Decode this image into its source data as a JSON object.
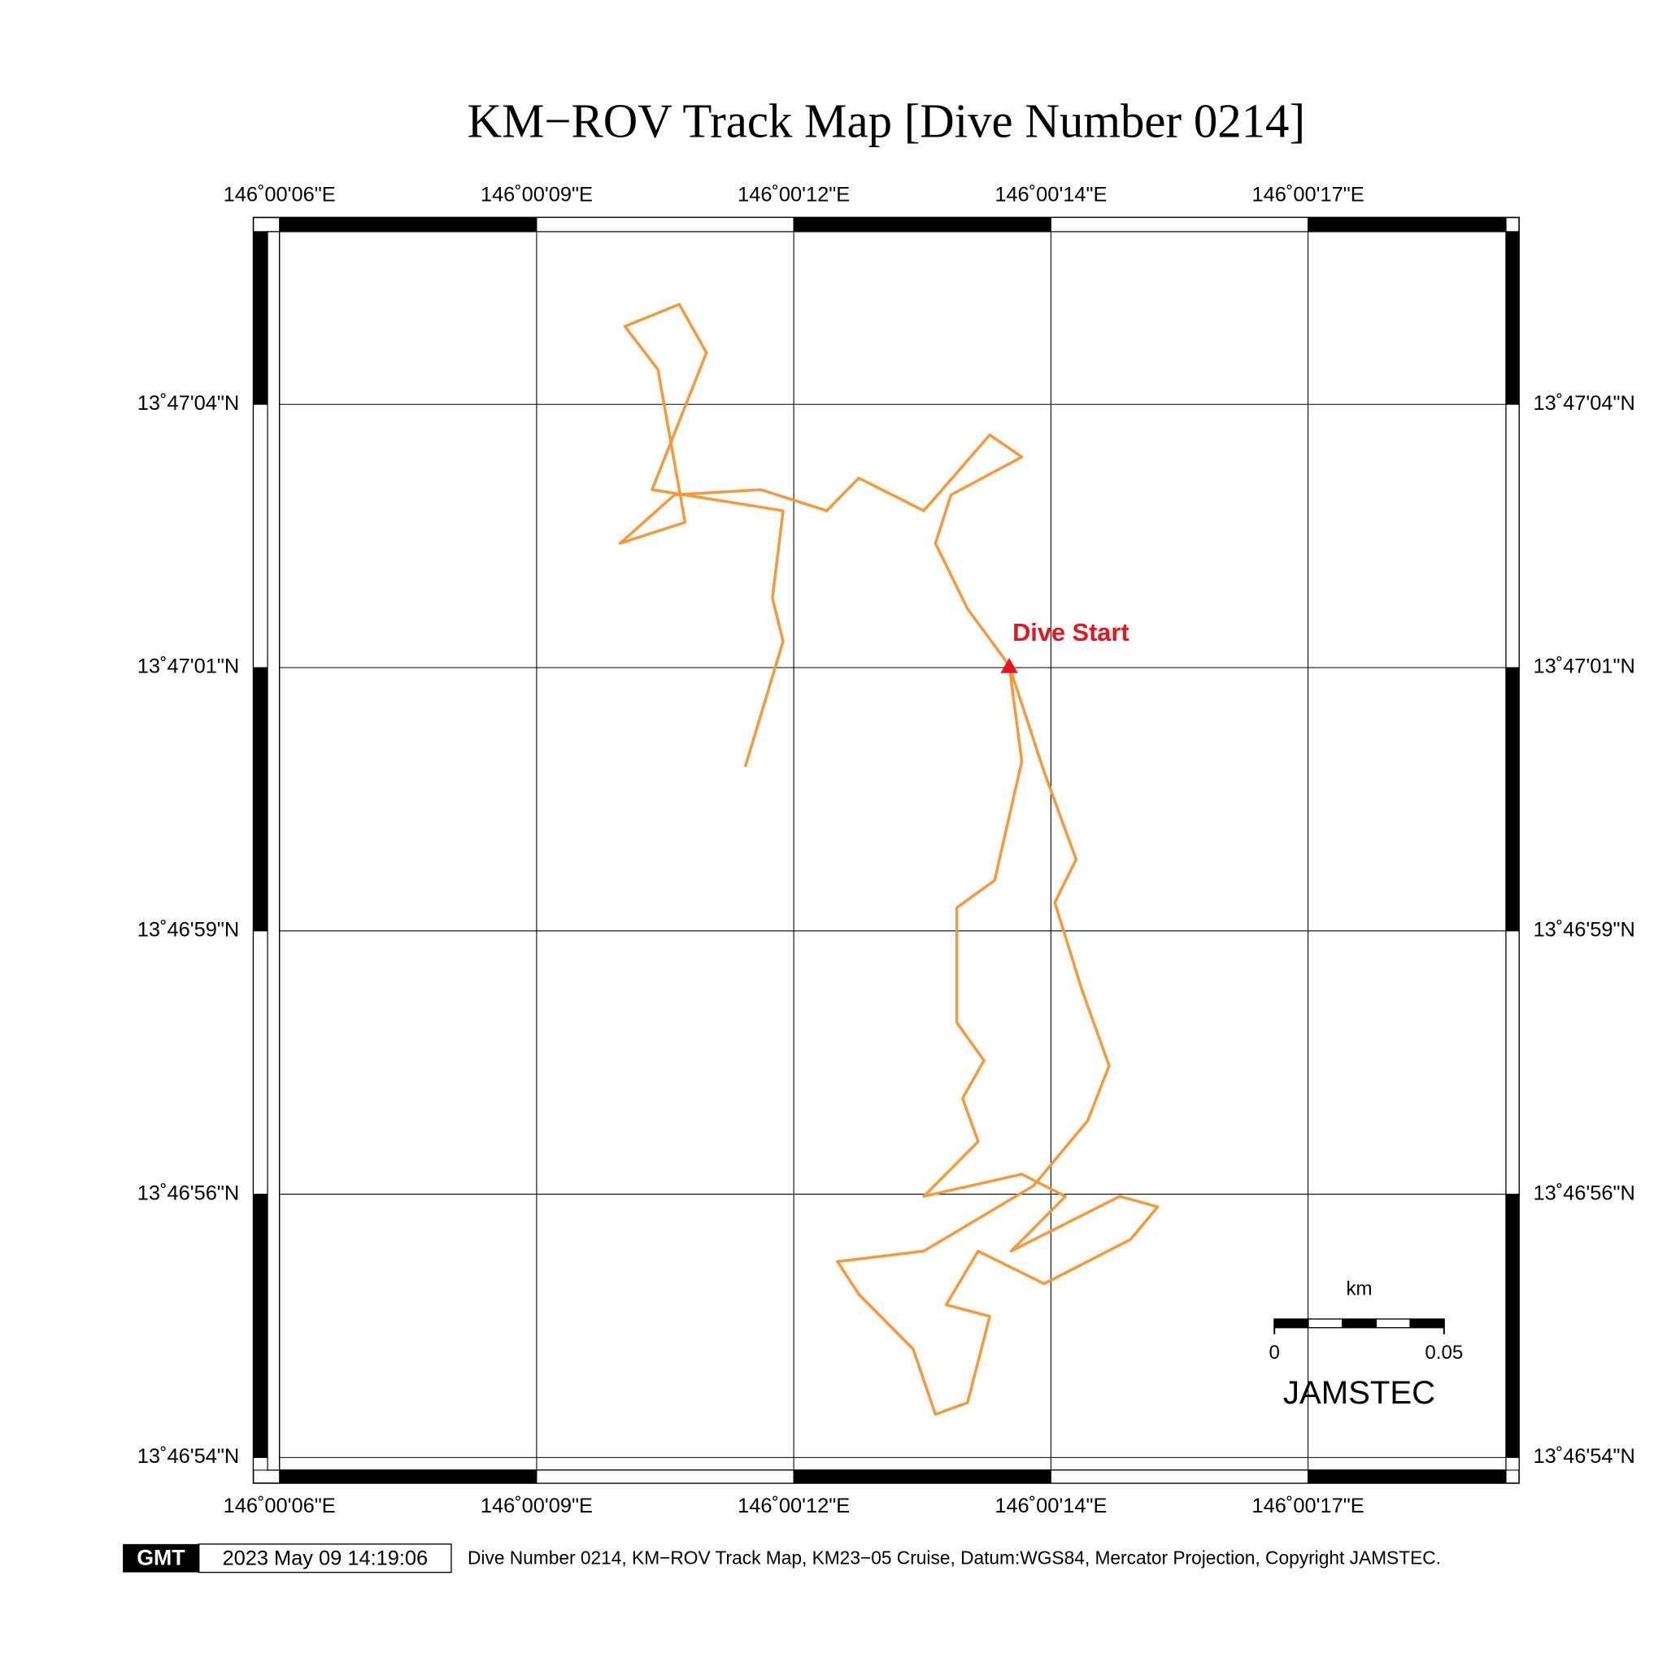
{
  "title": "KM−ROV Track Map [Dive Number 0214]",
  "map": {
    "xlim": [
      6.2,
      18.84
    ],
    "ylim": [
      113.58,
      125.34
    ],
    "xticks": [
      {
        "value": 6.2,
        "label": "146˚00'06\"E"
      },
      {
        "value": 8.85,
        "label": "146˚00'09\"E"
      },
      {
        "value": 11.5,
        "label": "146˚00'12\"E"
      },
      {
        "value": 14.15,
        "label": "146˚00'14\"E"
      },
      {
        "value": 16.8,
        "label": "146˚00'17\"E"
      }
    ],
    "yticks": [
      {
        "value": 123.7,
        "label": "13˚47'04\"N"
      },
      {
        "value": 121.2,
        "label": "13˚47'01\"N"
      },
      {
        "value": 118.7,
        "label": "13˚46'59\"N"
      },
      {
        "value": 116.2,
        "label": "13˚46'56\"N"
      },
      {
        "value": 113.7,
        "label": "13˚46'54\"N"
      }
    ],
    "track": {
      "color": "#f7993a",
      "lon": [
        13.72,
        13.85,
        13.57,
        13.18,
        13.18,
        13.46,
        13.24,
        13.4,
        12.84,
        13.85,
        14.3,
        13.74,
        14.86,
        15.25,
        14.97,
        14.08,
        13.4,
        13.07,
        13.52,
        13.29,
        12.96,
        12.73,
        12.17,
        11.95,
        12.84,
        13.97,
        14.53,
        14.75,
        14.47,
        14.19,
        14.41,
        14.08,
        13.72,
        13.29,
        12.96,
        13.12,
        13.85,
        13.52,
        12.84,
        12.17,
        11.84,
        11.16,
        10.27,
        9.71,
        10.38,
        10.1,
        9.76,
        10.32,
        10.6,
        10.04,
        11.39,
        11.28,
        11.39,
        11.0
      ],
      "lat": [
        121.22,
        120.31,
        119.18,
        118.92,
        117.83,
        117.47,
        117.11,
        116.7,
        116.18,
        116.39,
        116.18,
        115.66,
        116.18,
        116.08,
        115.77,
        115.35,
        115.66,
        115.15,
        115.04,
        114.22,
        114.11,
        114.73,
        115.25,
        115.56,
        115.66,
        116.28,
        116.9,
        117.42,
        118.14,
        118.97,
        119.38,
        120.21,
        121.22,
        121.76,
        122.38,
        122.84,
        123.2,
        123.41,
        122.69,
        123.0,
        122.69,
        122.89,
        122.84,
        122.38,
        122.58,
        124.03,
        124.44,
        124.65,
        124.19,
        122.89,
        122.69,
        121.86,
        121.45,
        120.26
      ]
    },
    "marker": {
      "label": "Dive Start",
      "lon": 13.72,
      "lat": 121.22,
      "color": "#e8141e"
    },
    "scale_bar": {
      "unit": "km",
      "ticks": [
        0,
        0.05
      ],
      "label": "JAMSTEC"
    }
  },
  "footer": {
    "logo": "GMT",
    "timestamp": "2023 May 09 14:19:06",
    "caption": "Dive Number 0214, KM−ROV Track Map, KM23−05 Cruise, Datum:WGS84, Mercator Projection, Copyright JAMSTEC."
  }
}
